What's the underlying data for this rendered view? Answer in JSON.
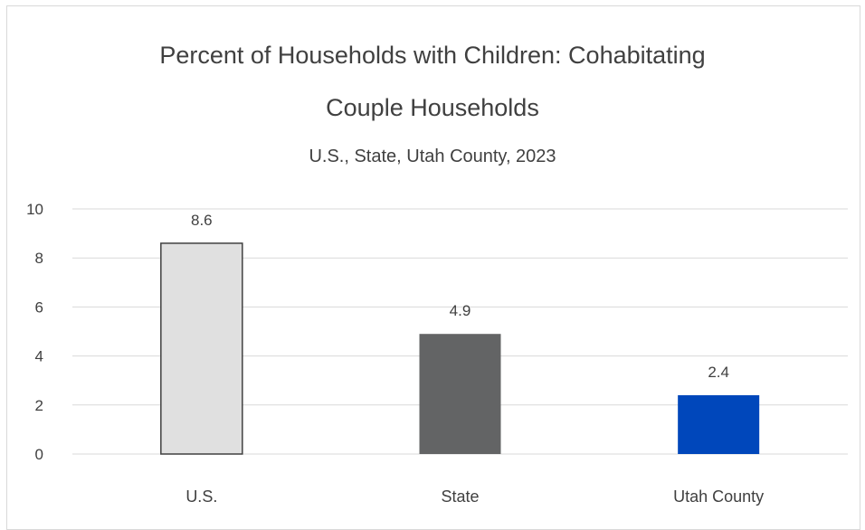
{
  "chart_data": {
    "type": "bar",
    "title_line1": "Percent of Households with Children: Cohabitating",
    "title_line2": "Couple Households",
    "subtitle": "U.S., State, Utah County, 2023",
    "categories": [
      "U.S.",
      "State",
      "Utah County"
    ],
    "values": [
      8.6,
      4.9,
      2.4
    ],
    "value_labels": [
      "8.6",
      "4.9",
      "2.4"
    ],
    "bar_colors": [
      "#e0e0e0",
      "#636465",
      "#0047bb"
    ],
    "bar_outline_colors": [
      "#404040",
      "#636465",
      "#0047bb"
    ],
    "ylim": [
      0,
      10
    ],
    "yticks": [
      0,
      2,
      4,
      6,
      8,
      10
    ],
    "ytick_labels": [
      "0",
      "2",
      "4",
      "6",
      "8",
      "10"
    ],
    "grid": true,
    "legend": "none",
    "xlabel": "",
    "ylabel": ""
  }
}
